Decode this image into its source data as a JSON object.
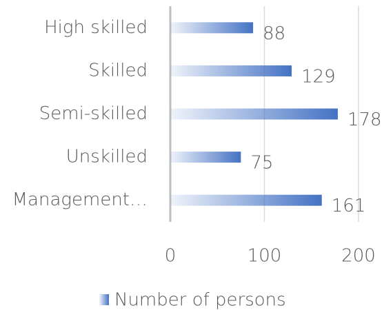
{
  "chart_data": {
    "type": "bar",
    "orientation": "horizontal",
    "categories": [
      "High skilled",
      "Skilled",
      "Semi-skilled",
      "Unskilled",
      "Management…"
    ],
    "series": [
      {
        "name": "Number of persons",
        "color": "#4472c4",
        "values": [
          88,
          129,
          178,
          75,
          161
        ]
      }
    ],
    "xlim": [
      0,
      200
    ],
    "xticks": [
      0,
      100,
      200
    ],
    "grid": true,
    "legend": "bottom"
  }
}
